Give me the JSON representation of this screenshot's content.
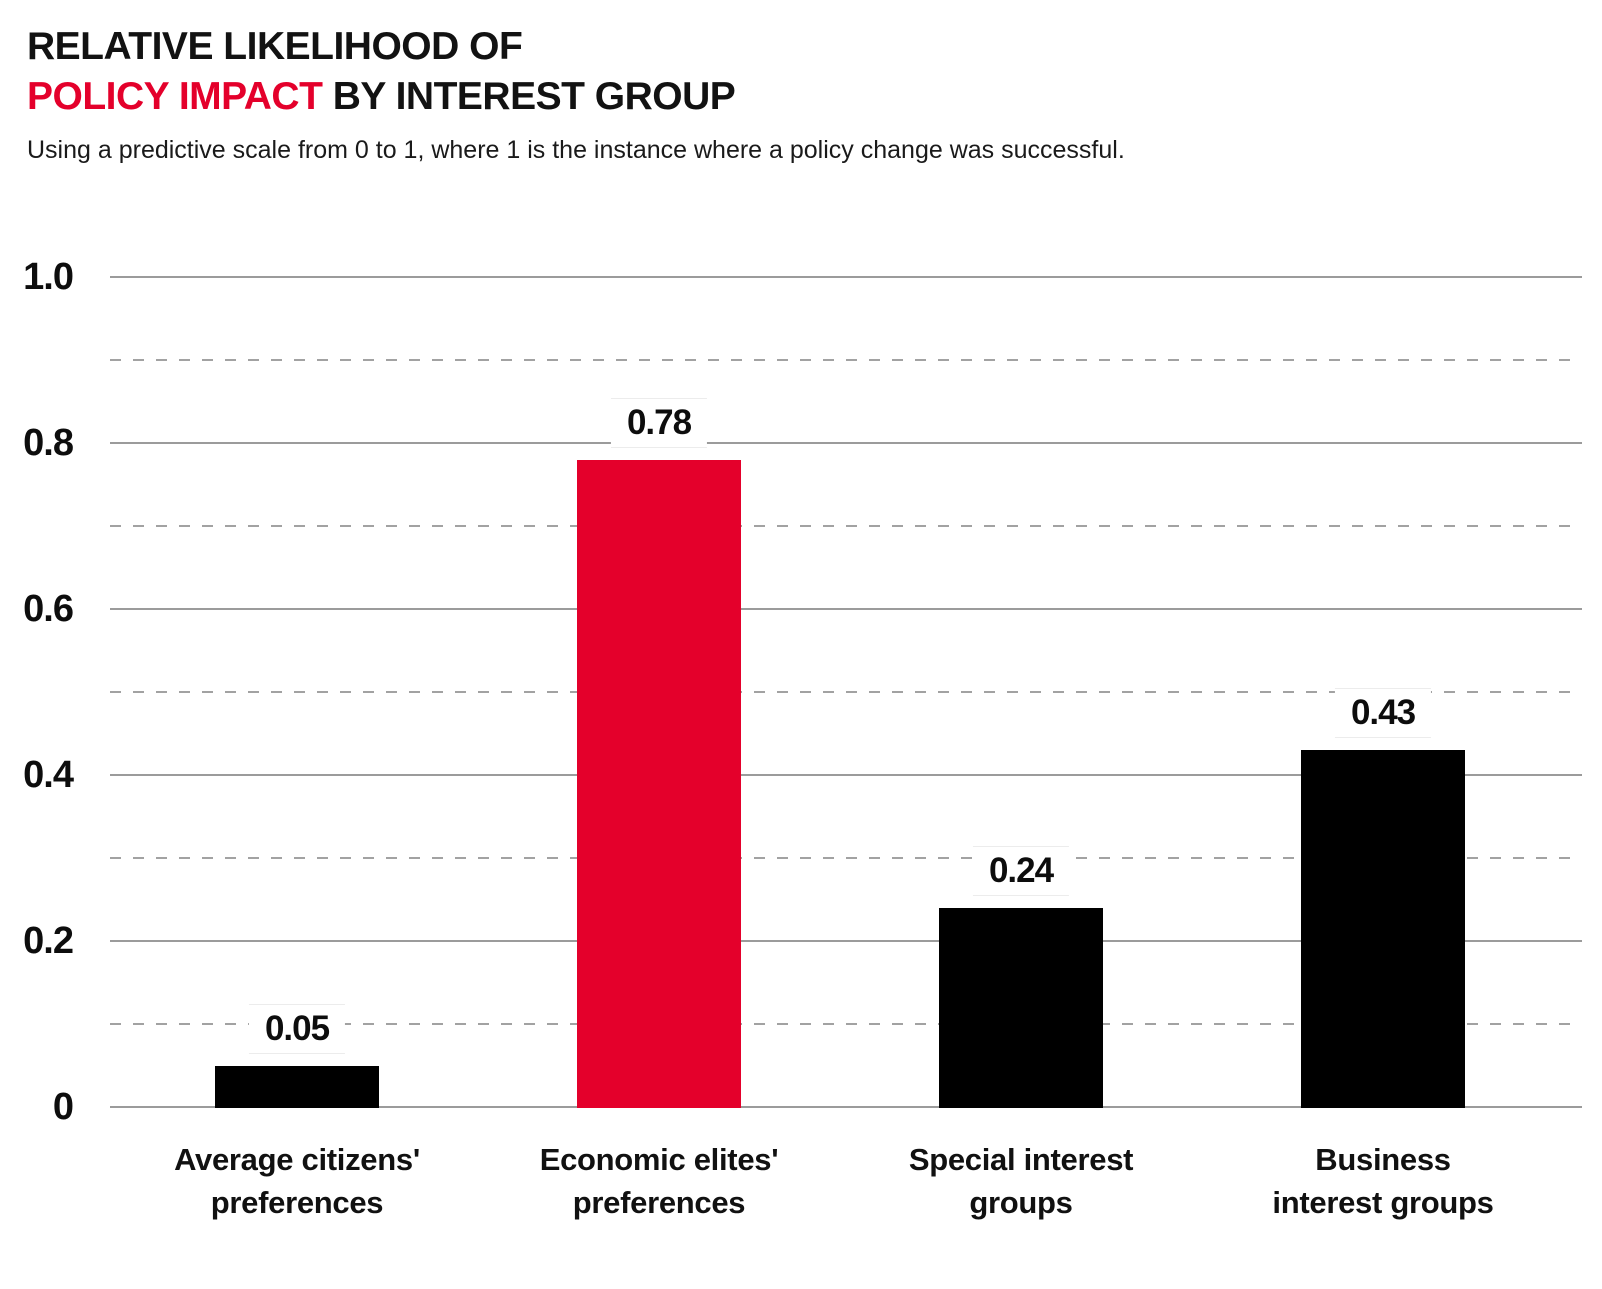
{
  "header": {
    "title_line1": "RELATIVE LIKELIHOOD OF",
    "title_accent": "POLICY IMPACT",
    "title_rest": " BY INTEREST GROUP",
    "subtitle": "Using a predictive scale from 0 to 1, where 1 is the instance where a policy change was successful."
  },
  "colors": {
    "accent_red": "#e4002b",
    "bar_black": "#000000",
    "gridline": "#9b9b9b",
    "text": "#0d0d0d",
    "background": "#ffffff"
  },
  "chart_data": {
    "type": "bar",
    "title": "RELATIVE LIKELIHOOD OF POLICY IMPACT BY INTEREST GROUP",
    "subtitle": "Using a predictive scale from 0 to 1, where 1 is the instance where a policy change was successful.",
    "categories": [
      "Average citizens'\npreferences",
      "Economic elites'\npreferences",
      "Special interest\ngroups",
      "Business\ninterest groups"
    ],
    "values": [
      0.05,
      0.78,
      0.24,
      0.43
    ],
    "value_labels": [
      "0.05",
      "0.78",
      "0.24",
      "0.43"
    ],
    "bar_colors": [
      "#000000",
      "#e4002b",
      "#000000",
      "#000000"
    ],
    "xlabel": "",
    "ylabel": "",
    "ylim": [
      0,
      1.0
    ],
    "yticks_solid": [
      0,
      0.2,
      0.4,
      0.6,
      0.8,
      1.0
    ],
    "ytick_labels": [
      "0",
      "0.2",
      "0.4",
      "0.6",
      "0.8",
      "1.0"
    ],
    "yticks_dashed": [
      0.1,
      0.3,
      0.5,
      0.7,
      0.9
    ],
    "grid": "horizontal, solid major + dashed minor",
    "legend": "none"
  }
}
